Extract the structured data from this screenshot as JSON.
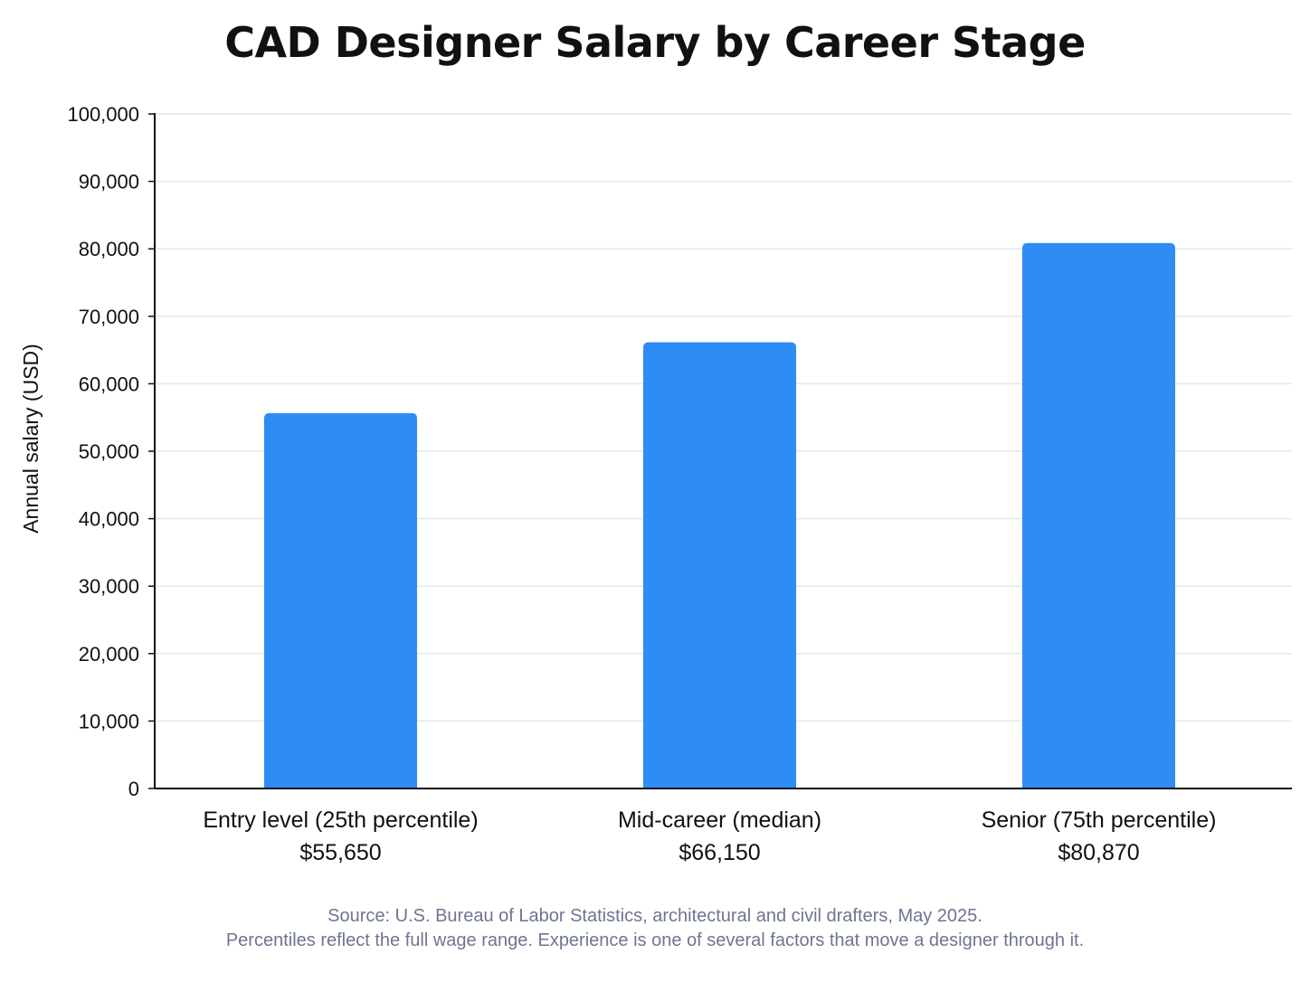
{
  "chart_data": {
    "type": "bar",
    "title": "CAD Designer Salary by Career Stage",
    "xlabel": "",
    "ylabel": "Annual salary (USD)",
    "ylim": [
      0,
      100000
    ],
    "ytick_values": [
      0,
      10000,
      20000,
      30000,
      40000,
      50000,
      60000,
      70000,
      80000,
      90000,
      100000
    ],
    "ytick_labels": [
      "0",
      "10,000",
      "20,000",
      "30,000",
      "40,000",
      "50,000",
      "60,000",
      "70,000",
      "80,000",
      "90,000",
      "100,000"
    ],
    "categories": [
      "Entry level (25th percentile)",
      "Mid-career (median)",
      "Senior (75th percentile)"
    ],
    "values": [
      55650,
      66150,
      80870
    ],
    "value_labels": [
      "$55,650",
      "$66,150",
      "$80,870"
    ],
    "grid": true,
    "legend": "none",
    "bar_color": "#2e8cf5",
    "grid_color": "#e3e6ee",
    "axis_color": "#111111"
  },
  "footer": {
    "source_line_1": "Source: U.S. Bureau of Labor Statistics, architectural and civil drafters, May 2025.",
    "source_line_2": "Percentiles reflect the full wage range. Experience is one of several factors that move a designer through it."
  }
}
